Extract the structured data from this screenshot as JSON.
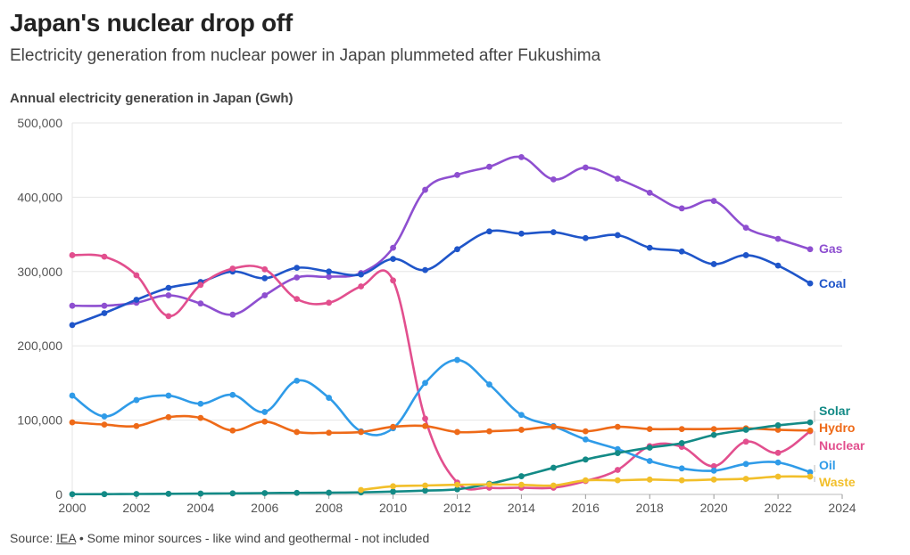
{
  "header": {
    "title": "Japan's nuclear drop off",
    "subtitle": "Electricity generation from nuclear power in Japan plummeted after Fukushima",
    "axis_title": "Annual electricity generation in Japan (Gwh)"
  },
  "footer": {
    "source_prefix": "Source: ",
    "source_link": "IEA",
    "source_note": " • Some minor sources - like wind and geothermal - not included"
  },
  "chart_data": {
    "type": "line",
    "title": "Japan's nuclear drop off",
    "subtitle": "Electricity generation from nuclear power in Japan plummeted after Fukushima",
    "ylabel": "Annual electricity generation in Japan (Gwh)",
    "xlabel": "",
    "xlim": [
      2000,
      2024
    ],
    "ylim": [
      0,
      500000
    ],
    "x_ticks": [
      2000,
      2002,
      2004,
      2006,
      2008,
      2010,
      2012,
      2014,
      2016,
      2018,
      2020,
      2022,
      2024
    ],
    "x_tick_labels": [
      "2000",
      "2002",
      "2004",
      "2006",
      "2008",
      "2010",
      "2012",
      "2014",
      "2016",
      "2018",
      "2020",
      "2022",
      "2024"
    ],
    "y_ticks": [
      0,
      100000,
      200000,
      300000,
      400000,
      500000
    ],
    "y_tick_labels": [
      "0",
      "100,000",
      "200,000",
      "300,000",
      "400,000",
      "500,000"
    ],
    "grid": true,
    "legend": "direct labels at right end of lines",
    "series": [
      {
        "name": "Gas",
        "color": "#8e4fd0",
        "x": [
          2000,
          2001,
          2002,
          2003,
          2004,
          2005,
          2006,
          2007,
          2008,
          2009,
          2010,
          2011,
          2012,
          2013,
          2014,
          2015,
          2016,
          2017,
          2018,
          2019,
          2020,
          2021,
          2022,
          2023
        ],
        "values": [
          254000,
          254000,
          258000,
          268000,
          257000,
          242000,
          268000,
          292000,
          293000,
          298000,
          332000,
          410000,
          430000,
          441000,
          454000,
          424000,
          440000,
          425000,
          406000,
          385000,
          395000,
          359000,
          344000,
          330000
        ]
      },
      {
        "name": "Coal",
        "color": "#1f55c9",
        "x": [
          2000,
          2001,
          2002,
          2003,
          2004,
          2005,
          2006,
          2007,
          2008,
          2009,
          2010,
          2011,
          2012,
          2013,
          2014,
          2015,
          2016,
          2017,
          2018,
          2019,
          2020,
          2021,
          2022,
          2023
        ],
        "values": [
          228000,
          244000,
          262000,
          278000,
          286000,
          300000,
          291000,
          305000,
          300000,
          296000,
          317000,
          302000,
          330000,
          354000,
          351000,
          353000,
          345000,
          349000,
          332000,
          327000,
          310000,
          322000,
          308000,
          284000
        ]
      },
      {
        "name": "Nuclear",
        "color": "#e24f8e",
        "x": [
          2000,
          2001,
          2002,
          2003,
          2004,
          2005,
          2006,
          2007,
          2008,
          2009,
          2010,
          2011,
          2012,
          2013,
          2014,
          2015,
          2016,
          2017,
          2018,
          2019,
          2020,
          2021,
          2022,
          2023
        ],
        "values": [
          322000,
          320000,
          295000,
          240000,
          282000,
          304000,
          303000,
          263000,
          258000,
          280000,
          288000,
          102000,
          16000,
          9000,
          9000,
          9000,
          18000,
          33000,
          65000,
          64000,
          38000,
          71000,
          56000,
          85000
        ]
      },
      {
        "name": "Oil",
        "color": "#2f9be8",
        "x": [
          2000,
          2001,
          2002,
          2003,
          2004,
          2005,
          2006,
          2007,
          2008,
          2009,
          2010,
          2011,
          2012,
          2013,
          2014,
          2015,
          2016,
          2017,
          2018,
          2019,
          2020,
          2021,
          2022,
          2023
        ],
        "values": [
          133000,
          105000,
          127000,
          133000,
          122000,
          134000,
          111000,
          153000,
          130000,
          85000,
          89000,
          150000,
          181000,
          148000,
          107000,
          92000,
          74000,
          61000,
          45000,
          35000,
          32000,
          41000,
          43000,
          30000
        ]
      },
      {
        "name": "Hydro",
        "color": "#ee6a18",
        "x": [
          2000,
          2001,
          2002,
          2003,
          2004,
          2005,
          2006,
          2007,
          2008,
          2009,
          2010,
          2011,
          2012,
          2013,
          2014,
          2015,
          2016,
          2017,
          2018,
          2019,
          2020,
          2021,
          2022,
          2023
        ],
        "values": [
          97000,
          94000,
          92000,
          104000,
          103000,
          86000,
          98000,
          84000,
          83000,
          84000,
          91000,
          92000,
          84000,
          85000,
          87000,
          91000,
          85000,
          91000,
          88000,
          88000,
          88000,
          89000,
          87000,
          86000
        ]
      },
      {
        "name": "Solar",
        "color": "#138a86",
        "x": [
          2000,
          2001,
          2002,
          2003,
          2004,
          2005,
          2006,
          2007,
          2008,
          2009,
          2010,
          2011,
          2012,
          2013,
          2014,
          2015,
          2016,
          2017,
          2018,
          2019,
          2020,
          2021,
          2022,
          2023
        ],
        "values": [
          300,
          400,
          600,
          800,
          1100,
          1400,
          1800,
          2100,
          2300,
          2800,
          3800,
          5200,
          6900,
          14300,
          24500,
          35900,
          47000,
          55700,
          63000,
          69000,
          80000,
          87000,
          93000,
          97000
        ]
      },
      {
        "name": "Waste",
        "color": "#f2bf2a",
        "x": [
          2009,
          2010,
          2011,
          2012,
          2013,
          2014,
          2015,
          2016,
          2017,
          2018,
          2019,
          2020,
          2021,
          2022,
          2023
        ],
        "values": [
          6000,
          11000,
          12000,
          13000,
          13500,
          13000,
          12000,
          19000,
          19000,
          20000,
          19000,
          20000,
          21000,
          24000,
          24000
        ]
      }
    ]
  }
}
